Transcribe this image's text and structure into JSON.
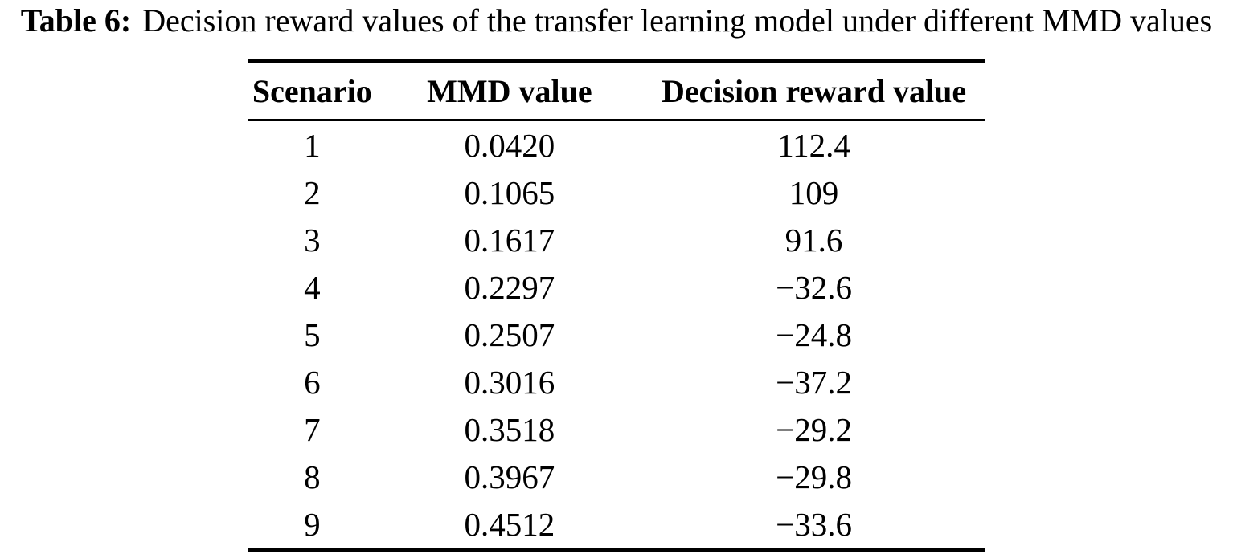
{
  "caption": {
    "label": "Table 6:",
    "text": "Decision reward values of the transfer learning model under different MMD values"
  },
  "table": {
    "columns": [
      "Scenario",
      "MMD value",
      "Decision reward value"
    ],
    "rows": [
      [
        "1",
        "0.0420",
        "112.4"
      ],
      [
        "2",
        "0.1065",
        "109"
      ],
      [
        "3",
        "0.1617",
        "91.6"
      ],
      [
        "4",
        "0.2297",
        "−32.6"
      ],
      [
        "5",
        "0.2507",
        "−24.8"
      ],
      [
        "6",
        "0.3016",
        "−37.2"
      ],
      [
        "7",
        "0.3518",
        "−29.2"
      ],
      [
        "8",
        "0.3967",
        "−29.8"
      ],
      [
        "9",
        "0.4512",
        "−33.6"
      ]
    ]
  },
  "colors": {
    "text": "#000000",
    "background": "#ffffff",
    "rule": "#000000"
  },
  "chart_data": {
    "type": "table",
    "title": "Table 6: Decision reward values of the transfer learning model under different MMD values",
    "categories": [
      "Scenario",
      "MMD value",
      "Decision reward value"
    ],
    "series": [
      {
        "name": "Scenario",
        "values": [
          1,
          2,
          3,
          4,
          5,
          6,
          7,
          8,
          9
        ]
      },
      {
        "name": "MMD value",
        "values": [
          0.042,
          0.1065,
          0.1617,
          0.2297,
          0.2507,
          0.3016,
          0.3518,
          0.3967,
          0.4512
        ]
      },
      {
        "name": "Decision reward value",
        "values": [
          112.4,
          109,
          91.6,
          -32.6,
          -24.8,
          -37.2,
          -29.2,
          -29.8,
          -33.6
        ]
      }
    ]
  }
}
